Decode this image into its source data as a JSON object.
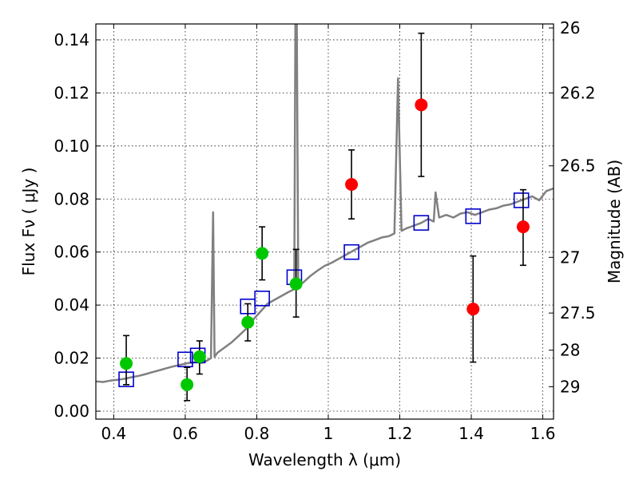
{
  "chart_data": {
    "type": "scatter",
    "title": "",
    "xlabel": "Wavelength  λ (μm)",
    "ylabel": "Flux  Fν  ( μJy )",
    "y2label": "Magnitude (AB)",
    "xlim": [
      0.35,
      1.63
    ],
    "ylim": [
      -0.003,
      0.146
    ],
    "grid": true,
    "x_ticks": [
      0.4,
      0.6,
      0.8,
      1.0,
      1.2,
      1.4,
      1.6
    ],
    "x_tick_labels": [
      "0.4",
      "0.6",
      "0.8",
      "1",
      "1.2",
      "1.4",
      "1.6"
    ],
    "y_ticks": [
      0.0,
      0.02,
      0.04,
      0.06,
      0.08,
      0.1,
      0.12,
      0.14
    ],
    "y_tick_labels": [
      "0.00",
      "0.02",
      "0.04",
      "0.06",
      "0.08",
      "0.10",
      "0.12",
      "0.14"
    ],
    "y2_ticks": [
      {
        "flux": 0.1445,
        "label": "26"
      },
      {
        "flux": 0.12,
        "label": "26.2"
      },
      {
        "flux": 0.0925,
        "label": "26.5"
      },
      {
        "flux": 0.058,
        "label": "27"
      },
      {
        "flux": 0.037,
        "label": "27.5"
      },
      {
        "flux": 0.023,
        "label": "28"
      },
      {
        "flux": 0.0092,
        "label": "29"
      }
    ],
    "series": [
      {
        "type": "line",
        "color": "#808080",
        "points": [
          [
            0.35,
            0.0112
          ],
          [
            0.37,
            0.011
          ],
          [
            0.39,
            0.0115
          ],
          [
            0.41,
            0.0118
          ],
          [
            0.43,
            0.0122
          ],
          [
            0.45,
            0.0128
          ],
          [
            0.47,
            0.0133
          ],
          [
            0.49,
            0.014
          ],
          [
            0.51,
            0.0148
          ],
          [
            0.53,
            0.0155
          ],
          [
            0.55,
            0.0163
          ],
          [
            0.57,
            0.017
          ],
          [
            0.59,
            0.0176
          ],
          [
            0.61,
            0.0182
          ],
          [
            0.63,
            0.0185
          ],
          [
            0.645,
            0.0182
          ],
          [
            0.66,
            0.019
          ],
          [
            0.672,
            0.02
          ],
          [
            0.678,
            0.075
          ],
          [
            0.682,
            0.0205
          ],
          [
            0.69,
            0.022
          ],
          [
            0.71,
            0.024
          ],
          [
            0.73,
            0.026
          ],
          [
            0.75,
            0.0285
          ],
          [
            0.77,
            0.031
          ],
          [
            0.79,
            0.0345
          ],
          [
            0.81,
            0.0375
          ],
          [
            0.83,
            0.0405
          ],
          [
            0.85,
            0.042
          ],
          [
            0.87,
            0.0435
          ],
          [
            0.89,
            0.045
          ],
          [
            0.905,
            0.046
          ],
          [
            0.908,
            0.146
          ],
          [
            0.912,
            0.146
          ],
          [
            0.916,
            0.0475
          ],
          [
            0.93,
            0.0485
          ],
          [
            0.95,
            0.051
          ],
          [
            0.97,
            0.053
          ],
          [
            0.99,
            0.0548
          ],
          [
            1.01,
            0.056
          ],
          [
            1.03,
            0.0575
          ],
          [
            1.05,
            0.059
          ],
          [
            1.07,
            0.0605
          ],
          [
            1.09,
            0.062
          ],
          [
            1.11,
            0.0635
          ],
          [
            1.13,
            0.0645
          ],
          [
            1.15,
            0.0655
          ],
          [
            1.17,
            0.066
          ],
          [
            1.185,
            0.067
          ],
          [
            1.195,
            0.1255
          ],
          [
            1.205,
            0.068
          ],
          [
            1.22,
            0.069
          ],
          [
            1.24,
            0.07
          ],
          [
            1.26,
            0.071
          ],
          [
            1.28,
            0.0725
          ],
          [
            1.295,
            0.0715
          ],
          [
            1.3,
            0.0825
          ],
          [
            1.31,
            0.073
          ],
          [
            1.33,
            0.074
          ],
          [
            1.35,
            0.073
          ],
          [
            1.37,
            0.0745
          ],
          [
            1.39,
            0.075
          ],
          [
            1.41,
            0.074
          ],
          [
            1.43,
            0.075
          ],
          [
            1.45,
            0.076
          ],
          [
            1.47,
            0.0765
          ],
          [
            1.49,
            0.0775
          ],
          [
            1.51,
            0.078
          ],
          [
            1.53,
            0.079
          ],
          [
            1.55,
            0.08
          ],
          [
            1.57,
            0.081
          ],
          [
            1.59,
            0.0795
          ],
          [
            1.61,
            0.083
          ],
          [
            1.63,
            0.084
          ]
        ]
      },
      {
        "name": "",
        "type": "scatter",
        "marker": "square",
        "color": "#0000cc",
        "points": [
          [
            0.435,
            0.012
          ],
          [
            0.6,
            0.0195
          ],
          [
            0.635,
            0.021
          ],
          [
            0.775,
            0.0395
          ],
          [
            0.815,
            0.0425
          ],
          [
            0.905,
            0.0505
          ],
          [
            1.065,
            0.06
          ],
          [
            1.26,
            0.071
          ],
          [
            1.405,
            0.0735
          ],
          [
            1.54,
            0.0795
          ]
        ]
      },
      {
        "name": "",
        "type": "scatter",
        "marker": "circle",
        "color": "#00c800",
        "points": [
          {
            "x": 0.435,
            "y": 0.018,
            "yerr_low": 0.01,
            "yerr_high": 0.0285
          },
          {
            "x": 0.605,
            "y": 0.01,
            "yerr_low": 0.004,
            "yerr_high": 0.0165
          },
          {
            "x": 0.64,
            "y": 0.0205,
            "yerr_low": 0.014,
            "yerr_high": 0.0265
          },
          {
            "x": 0.775,
            "y": 0.0335,
            "yerr_low": 0.0265,
            "yerr_high": 0.0405
          },
          {
            "x": 0.815,
            "y": 0.0595,
            "yerr_low": 0.0495,
            "yerr_high": 0.0695
          },
          {
            "x": 0.91,
            "y": 0.048,
            "yerr_low": 0.0355,
            "yerr_high": 0.061
          }
        ]
      },
      {
        "name": "",
        "type": "scatter",
        "marker": "circle",
        "color": "#ff0000",
        "points": [
          {
            "x": 1.065,
            "y": 0.0855,
            "yerr_low": 0.0725,
            "yerr_high": 0.0985
          },
          {
            "x": 1.26,
            "y": 0.1155,
            "yerr_low": 0.0885,
            "yerr_high": 0.1425
          },
          {
            "x": 1.405,
            "y": 0.0385,
            "yerr_low": 0.0185,
            "yerr_high": 0.0585
          },
          {
            "x": 1.545,
            "y": 0.0695,
            "yerr_low": 0.055,
            "yerr_high": 0.0835
          }
        ]
      }
    ]
  }
}
